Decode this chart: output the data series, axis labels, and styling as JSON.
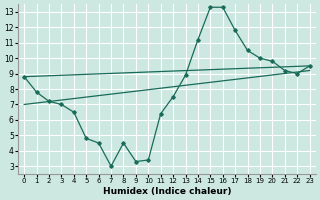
{
  "xlabel": "Humidex (Indice chaleur)",
  "bg_color": "#cce8e0",
  "grid_color": "#ffffff",
  "line_color": "#1a6b5a",
  "xlim": [
    -0.5,
    23.5
  ],
  "ylim": [
    2.5,
    13.5
  ],
  "yticks": [
    3,
    4,
    5,
    6,
    7,
    8,
    9,
    10,
    11,
    12,
    13
  ],
  "xticks": [
    0,
    1,
    2,
    3,
    4,
    5,
    6,
    7,
    8,
    9,
    10,
    11,
    12,
    13,
    14,
    15,
    16,
    17,
    18,
    19,
    20,
    21,
    22,
    23
  ],
  "line1_x": [
    0,
    1,
    2,
    3,
    4,
    5,
    6,
    7,
    8,
    9,
    10,
    11,
    12,
    13,
    14,
    15,
    16,
    17,
    18,
    19,
    20,
    21,
    22,
    23
  ],
  "line1_y": [
    8.8,
    7.8,
    7.2,
    7.0,
    6.5,
    4.8,
    4.5,
    3.0,
    4.5,
    3.3,
    3.4,
    6.4,
    7.5,
    8.9,
    11.2,
    13.3,
    13.3,
    11.8,
    10.5,
    10.0,
    9.8,
    9.2,
    9.0,
    9.5
  ],
  "line2_x": [
    0,
    23
  ],
  "line2_y": [
    8.8,
    9.5
  ],
  "line3_x": [
    0,
    23
  ],
  "line3_y": [
    7.0,
    9.2
  ],
  "xlabel_fontsize": 6.5,
  "tick_fontsize_x": 5.0,
  "tick_fontsize_y": 5.5
}
